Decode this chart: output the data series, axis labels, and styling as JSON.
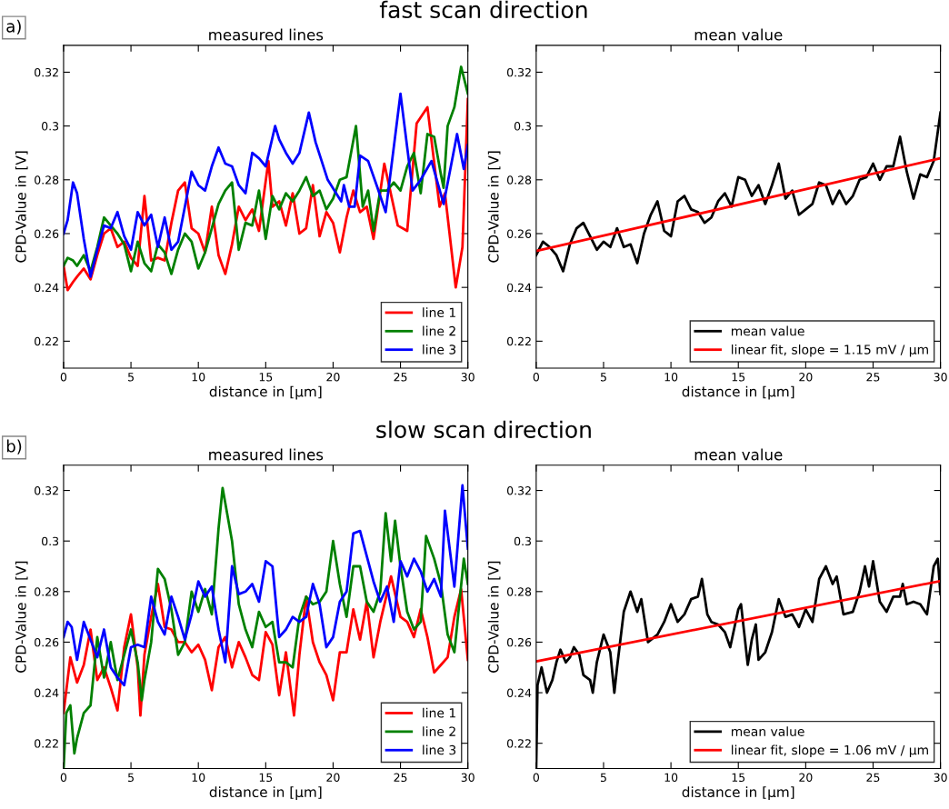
{
  "chart_data": [
    {
      "type": "line",
      "title": "measured lines",
      "xlabel": "distance in [μm]",
      "ylabel": "CPD-Value in [V]",
      "annotations": [
        "a)",
        "fast scan direction"
      ],
      "xlim": [
        0,
        30
      ],
      "ylim": [
        0.21,
        0.33
      ],
      "xticks": [
        0,
        5,
        10,
        15,
        20,
        25,
        30
      ],
      "yticks": [
        0.22,
        0.24,
        0.26,
        0.28,
        0.3,
        0.32
      ],
      "grid": false,
      "legend": "bottom right",
      "series": [
        {
          "name": "line 1",
          "color": "#ff0000",
          "x": [
            0,
            0.3,
            0.7,
            1,
            1.5,
            2,
            2.5,
            3,
            3.5,
            4,
            4.5,
            5,
            5.5,
            6,
            6.5,
            7,
            7.5,
            8,
            8.5,
            9,
            9.5,
            10,
            10.5,
            11,
            11.5,
            12,
            12.5,
            13,
            13.5,
            14,
            14.5,
            15.2,
            15.5,
            16,
            16.5,
            17,
            17.5,
            18,
            18.5,
            19,
            19.5,
            20,
            20.5,
            21,
            21.5,
            22,
            22.5,
            23,
            23.8,
            24.8,
            25.5,
            26.2,
            27,
            27.9,
            28.3,
            29.1,
            29.6,
            30
          ],
          "values": [
            0.248,
            0.239,
            0.242,
            0.244,
            0.247,
            0.243,
            0.252,
            0.26,
            0.262,
            0.255,
            0.257,
            0.251,
            0.248,
            0.274,
            0.25,
            0.251,
            0.25,
            0.264,
            0.276,
            0.279,
            0.262,
            0.26,
            0.253,
            0.27,
            0.252,
            0.245,
            0.256,
            0.27,
            0.265,
            0.269,
            0.261,
            0.287,
            0.27,
            0.272,
            0.263,
            0.275,
            0.26,
            0.262,
            0.278,
            0.259,
            0.268,
            0.264,
            0.253,
            0.266,
            0.276,
            0.268,
            0.27,
            0.258,
            0.286,
            0.263,
            0.261,
            0.301,
            0.307,
            0.27,
            0.275,
            0.24,
            0.255,
            0.31
          ]
        },
        {
          "name": "line 2",
          "color": "#008000",
          "x": [
            0,
            0.3,
            0.7,
            1,
            1.5,
            2,
            2.5,
            3,
            3.5,
            4,
            4.5,
            5,
            5.5,
            6,
            6.5,
            7,
            7.5,
            8,
            8.5,
            9,
            9.5,
            10,
            10.5,
            11,
            11.5,
            12,
            12.5,
            13,
            13.5,
            14,
            14.5,
            15,
            15.5,
            16,
            16.5,
            17,
            17.5,
            18,
            18.5,
            19,
            19.5,
            20,
            20.5,
            21,
            21.7,
            22.2,
            22.6,
            23,
            23.5,
            24,
            24.5,
            25,
            25.5,
            26,
            26.5,
            27,
            27.5,
            28,
            28.2,
            28.5,
            29,
            29.5,
            30
          ],
          "values": [
            0.248,
            0.251,
            0.25,
            0.248,
            0.252,
            0.246,
            0.255,
            0.266,
            0.263,
            0.26,
            0.256,
            0.246,
            0.257,
            0.249,
            0.246,
            0.256,
            0.253,
            0.245,
            0.254,
            0.26,
            0.257,
            0.247,
            0.253,
            0.262,
            0.271,
            0.276,
            0.279,
            0.254,
            0.264,
            0.263,
            0.276,
            0.258,
            0.274,
            0.269,
            0.275,
            0.272,
            0.276,
            0.281,
            0.274,
            0.276,
            0.269,
            0.273,
            0.28,
            0.281,
            0.3,
            0.27,
            0.276,
            0.261,
            0.276,
            0.276,
            0.279,
            0.276,
            0.285,
            0.29,
            0.275,
            0.297,
            0.296,
            0.282,
            0.277,
            0.3,
            0.307,
            0.322,
            0.312
          ]
        },
        {
          "name": "line 3",
          "color": "#0000ff",
          "x": [
            0,
            0.3,
            0.7,
            1,
            1.5,
            2,
            2.5,
            3,
            3.5,
            4,
            4.5,
            5,
            5.5,
            6,
            6.5,
            7,
            7.5,
            8,
            8.5,
            9,
            9.5,
            10,
            10.5,
            11,
            11.5,
            12,
            12.5,
            13,
            13.5,
            14,
            14.5,
            15,
            15.7,
            16,
            16.5,
            17,
            17.5,
            18.2,
            18.7,
            19.6,
            20.6,
            20.8,
            21.2,
            21.6,
            22,
            22.6,
            23.3,
            23.9,
            25,
            25.9,
            26.5,
            27.3,
            28.2,
            29.2,
            29.7,
            30
          ],
          "values": [
            0.26,
            0.265,
            0.279,
            0.275,
            0.258,
            0.244,
            0.254,
            0.263,
            0.262,
            0.268,
            0.259,
            0.254,
            0.268,
            0.263,
            0.267,
            0.255,
            0.266,
            0.254,
            0.257,
            0.27,
            0.283,
            0.278,
            0.276,
            0.285,
            0.292,
            0.286,
            0.285,
            0.278,
            0.275,
            0.29,
            0.288,
            0.285,
            0.3,
            0.295,
            0.29,
            0.286,
            0.29,
            0.305,
            0.294,
            0.28,
            0.272,
            0.278,
            0.27,
            0.27,
            0.289,
            0.287,
            0.277,
            0.268,
            0.312,
            0.276,
            0.28,
            0.287,
            0.271,
            0.297,
            0.284,
            0.293
          ]
        }
      ]
    },
    {
      "type": "line",
      "title": "mean value",
      "xlabel": "distance in [μm]",
      "ylabel": "CPD-Value in [V]",
      "xlim": [
        0,
        30
      ],
      "ylim": [
        0.21,
        0.33
      ],
      "xticks": [
        0,
        5,
        10,
        15,
        20,
        25,
        30
      ],
      "yticks": [
        0.22,
        0.24,
        0.26,
        0.28,
        0.3,
        0.32
      ],
      "grid": false,
      "legend": "bottom right",
      "series": [
        {
          "name": "mean value",
          "color": "#000000",
          "x": [
            0,
            0.5,
            1,
            1.5,
            2,
            2.5,
            3,
            3.5,
            4,
            4.5,
            5,
            5.5,
            6,
            6.5,
            7,
            7.5,
            8,
            8.5,
            9,
            9.5,
            10,
            10.5,
            11,
            11.5,
            12,
            12.5,
            13,
            13.5,
            14,
            14.5,
            15,
            15.5,
            16,
            16.5,
            17,
            17.5,
            18,
            18.5,
            19,
            19.5,
            20,
            20.5,
            21,
            21.5,
            22,
            22.5,
            23,
            23.5,
            24,
            24.5,
            25,
            25.5,
            26,
            26.5,
            27,
            27.5,
            28,
            28.5,
            29,
            29.5,
            30
          ],
          "values": [
            0.252,
            0.257,
            0.255,
            0.252,
            0.246,
            0.256,
            0.262,
            0.264,
            0.259,
            0.254,
            0.257,
            0.255,
            0.262,
            0.255,
            0.256,
            0.249,
            0.26,
            0.267,
            0.272,
            0.261,
            0.259,
            0.272,
            0.274,
            0.269,
            0.268,
            0.264,
            0.266,
            0.272,
            0.275,
            0.27,
            0.281,
            0.28,
            0.274,
            0.278,
            0.271,
            0.278,
            0.286,
            0.273,
            0.276,
            0.267,
            0.269,
            0.271,
            0.279,
            0.278,
            0.271,
            0.276,
            0.271,
            0.274,
            0.28,
            0.281,
            0.286,
            0.28,
            0.285,
            0.285,
            0.296,
            0.283,
            0.273,
            0.282,
            0.281,
            0.287,
            0.305
          ]
        },
        {
          "name": "linear fit, slope = 1.15 mV / μm",
          "color": "#ff0000",
          "x": [
            0,
            30
          ],
          "values": [
            0.2535,
            0.288
          ]
        }
      ]
    },
    {
      "type": "line",
      "title": "measured lines",
      "xlabel": "distance in [μm]",
      "ylabel": "CPD-Value in [V]",
      "annotations": [
        "b)",
        "slow scan direction"
      ],
      "xlim": [
        0,
        30
      ],
      "ylim": [
        0.21,
        0.33
      ],
      "xticks": [
        0,
        5,
        10,
        15,
        20,
        25,
        30
      ],
      "yticks": [
        0.22,
        0.24,
        0.26,
        0.28,
        0.3,
        0.32
      ],
      "grid": false,
      "legend": "bottom right",
      "series": [
        {
          "name": "line 1",
          "color": "#ff0000",
          "x": [
            0,
            0.5,
            1,
            1.5,
            2,
            2.5,
            3,
            3.5,
            4,
            4.5,
            5,
            5.5,
            5.7,
            6,
            6.5,
            7,
            7.5,
            8,
            8.5,
            9,
            9.5,
            10,
            10.5,
            11,
            11.5,
            12,
            12.5,
            13,
            13.5,
            14,
            14.5,
            15,
            15.5,
            16,
            16.5,
            17.1,
            17.5,
            18,
            18.5,
            19,
            19.5,
            20,
            20.5,
            21,
            21.5,
            22,
            22.5,
            23,
            23.5,
            24.3,
            25,
            25.5,
            26,
            26.5,
            27,
            27.5,
            28,
            28.5,
            29,
            29.5,
            30
          ],
          "values": [
            0.232,
            0.254,
            0.244,
            0.251,
            0.265,
            0.245,
            0.25,
            0.242,
            0.233,
            0.258,
            0.271,
            0.25,
            0.231,
            0.255,
            0.27,
            0.283,
            0.266,
            0.265,
            0.26,
            0.26,
            0.256,
            0.259,
            0.253,
            0.241,
            0.258,
            0.262,
            0.25,
            0.26,
            0.254,
            0.247,
            0.245,
            0.264,
            0.259,
            0.239,
            0.256,
            0.231,
            0.255,
            0.278,
            0.26,
            0.252,
            0.247,
            0.237,
            0.256,
            0.256,
            0.273,
            0.261,
            0.276,
            0.254,
            0.268,
            0.286,
            0.27,
            0.268,
            0.262,
            0.273,
            0.262,
            0.248,
            0.251,
            0.254,
            0.27,
            0.281,
            0.253
          ]
        },
        {
          "name": "line 2",
          "color": "#008000",
          "x": [
            0,
            0.2,
            0.5,
            0.8,
            1,
            1.5,
            2,
            2.5,
            3,
            3.5,
            4,
            4.5,
            5,
            5.5,
            5.8,
            6,
            6.5,
            7,
            7.5,
            8,
            8.5,
            9,
            9.5,
            10,
            10.5,
            11,
            11.5,
            11.8,
            12.5,
            13,
            13.5,
            14,
            14.5,
            15,
            15.5,
            16,
            16.5,
            17,
            17.5,
            18,
            18.5,
            19,
            19.5,
            20,
            20.5,
            21,
            21.5,
            22,
            22.5,
            23,
            23.5,
            23.9,
            24.3,
            24.6,
            25,
            25.5,
            26,
            26.5,
            26.9,
            27.5,
            28,
            28.5,
            29,
            29.7,
            30
          ],
          "values": [
            0.21,
            0.232,
            0.235,
            0.216,
            0.222,
            0.232,
            0.235,
            0.262,
            0.246,
            0.26,
            0.245,
            0.255,
            0.265,
            0.252,
            0.237,
            0.245,
            0.26,
            0.289,
            0.285,
            0.273,
            0.255,
            0.26,
            0.28,
            0.272,
            0.281,
            0.271,
            0.305,
            0.321,
            0.3,
            0.275,
            0.265,
            0.258,
            0.272,
            0.266,
            0.268,
            0.252,
            0.252,
            0.25,
            0.27,
            0.278,
            0.275,
            0.276,
            0.28,
            0.3,
            0.283,
            0.27,
            0.29,
            0.29,
            0.276,
            0.272,
            0.28,
            0.311,
            0.292,
            0.308,
            0.29,
            0.272,
            0.265,
            0.268,
            0.302,
            0.293,
            0.283,
            0.263,
            0.256,
            0.293,
            0.283
          ]
        },
        {
          "name": "line 3",
          "color": "#0000ff",
          "x": [
            0,
            0.3,
            0.6,
            1,
            1.5,
            2,
            2.5,
            3,
            3.5,
            4,
            4.5,
            5,
            5.5,
            6,
            6.5,
            7,
            7.5,
            8,
            8.5,
            9,
            9.5,
            10,
            10.5,
            11,
            11.5,
            12,
            12.5,
            13,
            13.5,
            14,
            14.5,
            15,
            15.5,
            16,
            16.5,
            17,
            17.5,
            18,
            18.5,
            19,
            19.5,
            20,
            20.5,
            21,
            21.5,
            22,
            22.5,
            23,
            23.5,
            24,
            24.5,
            25,
            25.5,
            26,
            26.5,
            27,
            27.5,
            28,
            28.3,
            29,
            29.6,
            30
          ],
          "values": [
            0.262,
            0.268,
            0.266,
            0.253,
            0.268,
            0.261,
            0.254,
            0.265,
            0.25,
            0.246,
            0.243,
            0.258,
            0.259,
            0.258,
            0.278,
            0.268,
            0.263,
            0.278,
            0.27,
            0.261,
            0.271,
            0.284,
            0.278,
            0.282,
            0.265,
            0.252,
            0.29,
            0.279,
            0.28,
            0.283,
            0.276,
            0.292,
            0.29,
            0.262,
            0.265,
            0.27,
            0.268,
            0.27,
            0.283,
            0.275,
            0.258,
            0.262,
            0.276,
            0.28,
            0.303,
            0.304,
            0.294,
            0.284,
            0.276,
            0.282,
            0.268,
            0.292,
            0.286,
            0.293,
            0.288,
            0.28,
            0.285,
            0.278,
            0.312,
            0.282,
            0.322,
            0.297
          ]
        }
      ]
    },
    {
      "type": "line",
      "title": "mean value",
      "xlabel": "distance in [μm]",
      "ylabel": "CPD-Value in [V]",
      "xlim": [
        0,
        30
      ],
      "ylim": [
        0.21,
        0.33
      ],
      "xticks": [
        0,
        5,
        10,
        15,
        20,
        25,
        30
      ],
      "yticks": [
        0.22,
        0.24,
        0.26,
        0.28,
        0.3,
        0.32
      ],
      "grid": false,
      "legend": "bottom right",
      "series": [
        {
          "name": "mean value",
          "color": "#000000",
          "x": [
            0,
            0.1,
            0.4,
            0.8,
            1.2,
            1.5,
            1.8,
            2.2,
            2.5,
            2.8,
            3.2,
            3.5,
            4,
            4.2,
            4.5,
            5,
            5.5,
            5.8,
            6,
            6.5,
            7,
            7.5,
            7.8,
            8.3,
            9,
            9.5,
            10,
            10.5,
            11,
            11.5,
            12,
            12.3,
            12.7,
            13,
            13.5,
            14,
            14.4,
            15,
            15.2,
            15.7,
            16,
            16.3,
            16.5,
            17,
            17.5,
            18,
            18.5,
            19,
            19.5,
            20,
            20.5,
            21,
            21.5,
            22,
            22.3,
            22.8,
            23.5,
            24,
            24.4,
            24.7,
            25,
            25.5,
            26,
            26.5,
            27,
            27.2,
            27.5,
            28,
            28.5,
            29,
            29.5,
            29.8,
            30
          ],
          "values": [
            0.21,
            0.243,
            0.25,
            0.24,
            0.245,
            0.252,
            0.257,
            0.252,
            0.254,
            0.258,
            0.255,
            0.247,
            0.245,
            0.24,
            0.252,
            0.263,
            0.256,
            0.24,
            0.25,
            0.272,
            0.28,
            0.272,
            0.277,
            0.26,
            0.263,
            0.268,
            0.275,
            0.268,
            0.271,
            0.277,
            0.278,
            0.285,
            0.271,
            0.268,
            0.267,
            0.264,
            0.258,
            0.273,
            0.275,
            0.251,
            0.261,
            0.267,
            0.253,
            0.256,
            0.264,
            0.277,
            0.27,
            0.271,
            0.266,
            0.273,
            0.268,
            0.285,
            0.29,
            0.283,
            0.286,
            0.271,
            0.272,
            0.28,
            0.29,
            0.282,
            0.292,
            0.276,
            0.272,
            0.278,
            0.278,
            0.283,
            0.275,
            0.276,
            0.275,
            0.271,
            0.29,
            0.293,
            0.279
          ]
        },
        {
          "name": "linear fit, slope = 1.06 mV / μm",
          "color": "#ff0000",
          "x": [
            0,
            30
          ],
          "values": [
            0.2524,
            0.2842
          ]
        }
      ]
    }
  ]
}
